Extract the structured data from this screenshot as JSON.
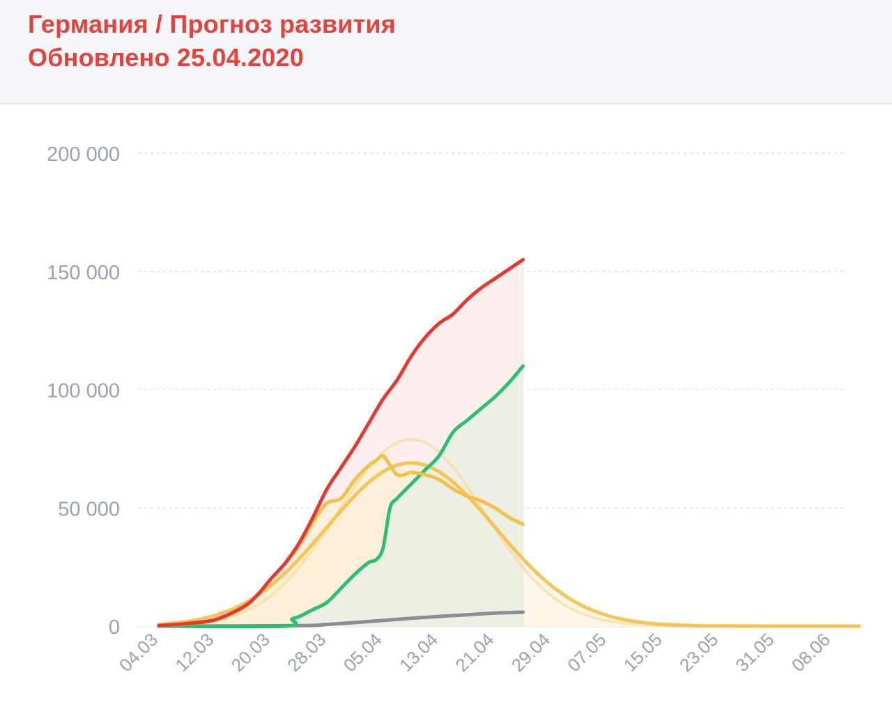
{
  "header": {
    "title": "Германия / Прогноз развития",
    "subtitle": "Обновлено 25.04.2020"
  },
  "colors": {
    "cases": "#e5392f",
    "recovered": "#2bbf6f",
    "active": "#f3c04a",
    "active_forecast": "#f8dd9c",
    "deaths": "#8c8c93",
    "grid": "#e0e2e8",
    "tick_text": "#9aa0ad",
    "cases_fill": "#fdeceb",
    "recovered_fill": "#e7efe4",
    "active_fill": "#fdf0d8"
  },
  "chart_data": {
    "type": "line",
    "x_axis": {
      "start_date": "04.03",
      "end_date": "12.06",
      "tick_labels": [
        "04.03",
        "12.03",
        "20.03",
        "28.03",
        "05.04",
        "13.04",
        "21.04",
        "29.04",
        "07.05",
        "15.05",
        "23.05",
        "31.05",
        "08.06"
      ],
      "tick_day_index": [
        0,
        8,
        16,
        24,
        32,
        40,
        48,
        56,
        64,
        72,
        80,
        88,
        96
      ],
      "last_actual_date": "25.04"
    },
    "y_axis": {
      "ylim": [
        0,
        200000
      ],
      "tick_values": [
        0,
        50000,
        100000,
        150000,
        200000
      ],
      "tick_labels": [
        "0",
        "50 000",
        "100 000",
        "150 000",
        "200 000"
      ]
    },
    "grid": true,
    "series": [
      {
        "key": "cases",
        "x": [
          0,
          4,
          8,
          12,
          14,
          16,
          18,
          20,
          22,
          24,
          26,
          28,
          30,
          32,
          34,
          36,
          38,
          40,
          42,
          44,
          46,
          48,
          50,
          52
        ],
        "y": [
          200,
          1100,
          2700,
          8000,
          13000,
          20000,
          26500,
          35000,
          46000,
          58000,
          67000,
          76000,
          86000,
          96000,
          104000,
          114000,
          122000,
          128000,
          132000,
          138000,
          143000,
          147000,
          151000,
          155000
        ]
      },
      {
        "key": "recovered",
        "x": [
          0,
          18,
          19,
          20,
          22,
          24,
          26,
          28,
          30,
          31,
          32,
          33,
          34,
          36,
          38,
          40,
          42,
          44,
          46,
          48,
          50,
          52
        ],
        "y": [
          0,
          0,
          3000,
          4000,
          7000,
          10000,
          16000,
          22000,
          27000,
          28000,
          33000,
          50000,
          54000,
          60000,
          66000,
          72000,
          82000,
          87000,
          92000,
          97000,
          103000,
          110000
        ]
      },
      {
        "key": "active",
        "x": [
          0,
          4,
          8,
          12,
          14,
          16,
          18,
          20,
          22,
          24,
          26,
          28,
          30,
          31,
          32,
          33,
          34,
          35,
          36,
          38,
          40,
          42,
          44,
          46,
          48,
          50,
          52
        ],
        "y": [
          200,
          1000,
          2600,
          7800,
          13000,
          20000,
          26500,
          34000,
          44000,
          52000,
          54000,
          62000,
          68000,
          70000,
          72000,
          68000,
          64000,
          64000,
          65000,
          64000,
          62000,
          58000,
          55000,
          53000,
          50000,
          46000,
          43000
        ]
      },
      {
        "key": "deaths",
        "x": [
          0,
          20,
          24,
          28,
          32,
          36,
          40,
          44,
          48,
          52
        ],
        "y": [
          0,
          200,
          700,
          1500,
          2400,
          3300,
          4100,
          4800,
          5500,
          5900
        ]
      },
      {
        "key": "active_forecast",
        "model": "gaussian",
        "peak_x": 36,
        "peak_y": 69000,
        "sigma": 12,
        "x_range": [
          0,
          100
        ]
      },
      {
        "key": "active_forecast_alt",
        "model": "gaussian",
        "peak_x": 36,
        "peak_y": 79000,
        "sigma": 10.5,
        "x_range": [
          0,
          100
        ]
      }
    ]
  }
}
